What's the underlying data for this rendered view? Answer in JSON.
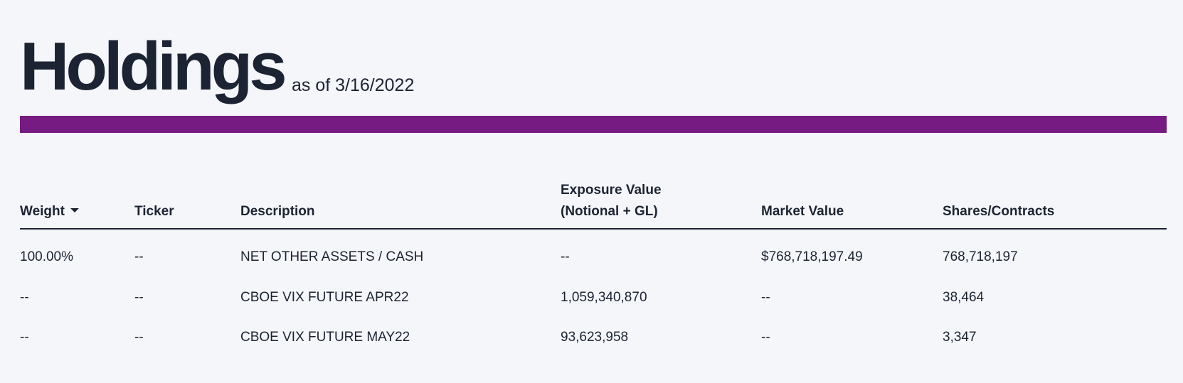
{
  "header": {
    "title": "Holdings",
    "as_of": "as of 3/16/2022"
  },
  "colors": {
    "accent_bar": "#761b81",
    "text": "#1c2433",
    "background": "#f5f6fa"
  },
  "table": {
    "columns": [
      {
        "label": "Weight",
        "sort": "descending"
      },
      {
        "label": "Ticker"
      },
      {
        "label": "Description"
      },
      {
        "label_line1": "Exposure Value",
        "label_line2": "(Notional + GL)"
      },
      {
        "label": "Market Value"
      },
      {
        "label": "Shares/Contracts"
      }
    ],
    "rows": [
      [
        "100.00%",
        "--",
        "NET OTHER ASSETS / CASH",
        "--",
        "$768,718,197.49",
        "768,718,197"
      ],
      [
        "--",
        "--",
        "CBOE VIX FUTURE APR22",
        "1,059,340,870",
        "--",
        "38,464"
      ],
      [
        "--",
        "--",
        "CBOE VIX FUTURE MAY22",
        "93,623,958",
        "--",
        "3,347"
      ]
    ]
  }
}
